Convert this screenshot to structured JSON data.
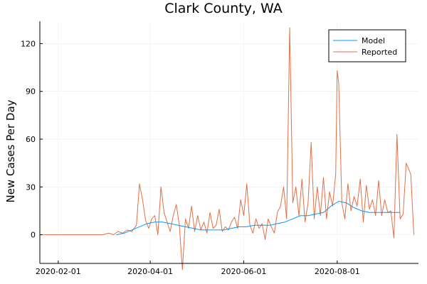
{
  "colors": {
    "model": "#009AFA",
    "reported": "#E26F46",
    "grid": "#eeeeee",
    "axis": "#000000"
  },
  "chart_data": {
    "type": "line",
    "title": "Clark County, WA",
    "xlabel": "",
    "ylabel": "New Cases Per Day",
    "xlim": [
      "2020-01-20",
      "2020-09-23"
    ],
    "ylim": [
      -18,
      134
    ],
    "x_ticks": [
      "2020-02-01",
      "2020-04-01",
      "2020-06-01",
      "2020-08-01"
    ],
    "y_ticks": [
      0,
      30,
      60,
      90,
      120
    ],
    "grid": true,
    "legend_position": "top-right",
    "series": [
      {
        "name": "Model",
        "x": [
          "2020-03-10",
          "2020-03-15",
          "2020-03-20",
          "2020-03-25",
          "2020-03-30",
          "2020-04-04",
          "2020-04-09",
          "2020-04-14",
          "2020-04-19",
          "2020-04-24",
          "2020-04-29",
          "2020-05-04",
          "2020-05-09",
          "2020-05-14",
          "2020-05-19",
          "2020-05-24",
          "2020-05-29",
          "2020-06-03",
          "2020-06-08",
          "2020-06-13",
          "2020-06-18",
          "2020-06-23",
          "2020-06-28",
          "2020-07-03",
          "2020-07-08",
          "2020-07-13",
          "2020-07-18",
          "2020-07-23",
          "2020-07-28",
          "2020-08-02",
          "2020-08-07",
          "2020-08-12",
          "2020-08-17",
          "2020-08-22",
          "2020-08-27",
          "2020-09-01",
          "2020-09-06",
          "2020-09-11"
        ],
        "values": [
          0,
          1,
          3,
          5,
          7,
          8,
          8,
          7,
          6,
          5,
          4,
          3,
          3,
          3,
          3,
          4,
          5,
          5,
          6,
          6,
          6,
          7,
          8,
          10,
          12,
          12,
          13,
          14,
          18,
          21,
          20,
          17,
          15,
          14,
          14,
          14,
          14,
          14
        ]
      },
      {
        "name": "Reported",
        "x": [
          "2020-01-22",
          "2020-02-01",
          "2020-02-15",
          "2020-03-01",
          "2020-03-05",
          "2020-03-08",
          "2020-03-11",
          "2020-03-14",
          "2020-03-17",
          "2020-03-20",
          "2020-03-23",
          "2020-03-25",
          "2020-03-27",
          "2020-03-29",
          "2020-03-31",
          "2020-04-02",
          "2020-04-04",
          "2020-04-06",
          "2020-04-08",
          "2020-04-10",
          "2020-04-12",
          "2020-04-14",
          "2020-04-16",
          "2020-04-18",
          "2020-04-20",
          "2020-04-22",
          "2020-04-24",
          "2020-04-26",
          "2020-04-28",
          "2020-04-30",
          "2020-05-02",
          "2020-05-04",
          "2020-05-06",
          "2020-05-08",
          "2020-05-10",
          "2020-05-12",
          "2020-05-14",
          "2020-05-16",
          "2020-05-18",
          "2020-05-20",
          "2020-05-22",
          "2020-05-24",
          "2020-05-26",
          "2020-05-28",
          "2020-05-30",
          "2020-06-01",
          "2020-06-03",
          "2020-06-05",
          "2020-06-07",
          "2020-06-09",
          "2020-06-11",
          "2020-06-13",
          "2020-06-15",
          "2020-06-17",
          "2020-06-19",
          "2020-06-21",
          "2020-06-23",
          "2020-06-25",
          "2020-06-27",
          "2020-06-29",
          "2020-07-01",
          "2020-07-03",
          "2020-07-05",
          "2020-07-07",
          "2020-07-09",
          "2020-07-11",
          "2020-07-13",
          "2020-07-15",
          "2020-07-17",
          "2020-07-19",
          "2020-07-21",
          "2020-07-23",
          "2020-07-25",
          "2020-07-27",
          "2020-07-29",
          "2020-07-31",
          "2020-08-01",
          "2020-08-02",
          "2020-08-04",
          "2020-08-06",
          "2020-08-08",
          "2020-08-10",
          "2020-08-12",
          "2020-08-14",
          "2020-08-16",
          "2020-08-18",
          "2020-08-20",
          "2020-08-22",
          "2020-08-24",
          "2020-08-26",
          "2020-08-28",
          "2020-08-30",
          "2020-09-01",
          "2020-09-03",
          "2020-09-05",
          "2020-09-07",
          "2020-09-09",
          "2020-09-11",
          "2020-09-13",
          "2020-09-15",
          "2020-09-18",
          "2020-09-20"
        ],
        "values": [
          0,
          0,
          0,
          0,
          1,
          0,
          2,
          1,
          3,
          2,
          6,
          32,
          22,
          9,
          4,
          10,
          12,
          0,
          30,
          14,
          8,
          2,
          12,
          19,
          6,
          -22,
          10,
          4,
          18,
          2,
          12,
          3,
          8,
          1,
          14,
          4,
          6,
          16,
          2,
          5,
          3,
          8,
          11,
          4,
          22,
          12,
          32,
          6,
          1,
          10,
          4,
          7,
          -3,
          10,
          5,
          1,
          14,
          18,
          30,
          10,
          130,
          20,
          30,
          12,
          35,
          8,
          20,
          58,
          10,
          30,
          12,
          36,
          10,
          27,
          18,
          38,
          103,
          95,
          20,
          10,
          32,
          15,
          24,
          18,
          35,
          8,
          31,
          16,
          22,
          12,
          34,
          12,
          22,
          14,
          15,
          -2,
          63,
          10,
          13,
          45,
          38,
          0
        ]
      }
    ]
  }
}
